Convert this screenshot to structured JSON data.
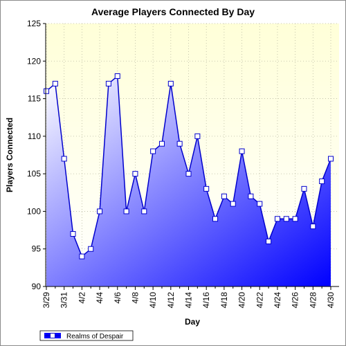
{
  "chart_data": {
    "type": "area",
    "title": "Average Players Connected By Day",
    "xlabel": "Day",
    "ylabel": "Players Connected",
    "ylim": [
      90,
      125
    ],
    "yticks": [
      90,
      95,
      100,
      105,
      110,
      115,
      120,
      125
    ],
    "x": [
      "3/29",
      "3/30",
      "3/31",
      "4/1",
      "4/2",
      "4/3",
      "4/4",
      "4/5",
      "4/6",
      "4/7",
      "4/8",
      "4/9",
      "4/10",
      "4/11",
      "4/12",
      "4/13",
      "4/14",
      "4/15",
      "4/16",
      "4/17",
      "4/18",
      "4/19",
      "4/20",
      "4/21",
      "4/22",
      "4/23",
      "4/24",
      "4/25",
      "4/26",
      "4/27",
      "4/28",
      "4/29",
      "4/30"
    ],
    "xtick_labels": [
      "3/29",
      "3/31",
      "4/2",
      "4/4",
      "4/6",
      "4/8",
      "4/10",
      "4/12",
      "4/14",
      "4/16",
      "4/18",
      "4/20",
      "4/22",
      "4/24",
      "4/26",
      "4/28",
      "4/30"
    ],
    "series": [
      {
        "name": "Realms of Despair",
        "values": [
          116,
          117,
          107,
          97,
          94,
          95,
          100,
          117,
          118,
          100,
          105,
          100,
          108,
          109,
          117,
          109,
          105,
          110,
          103,
          99,
          102,
          101,
          108,
          102,
          101,
          96,
          99,
          99,
          99,
          103,
          98,
          104,
          107
        ]
      }
    ],
    "grid": true,
    "legend_position": "bottom-left",
    "colors": {
      "line": "#0000cc",
      "fill_light": "#ffffff",
      "fill_dark": "#0000ff",
      "plot_bg_top": "#ffffd8",
      "plot_bg_bottom": "#ffffff",
      "marker_fill": "#ffffff"
    }
  }
}
